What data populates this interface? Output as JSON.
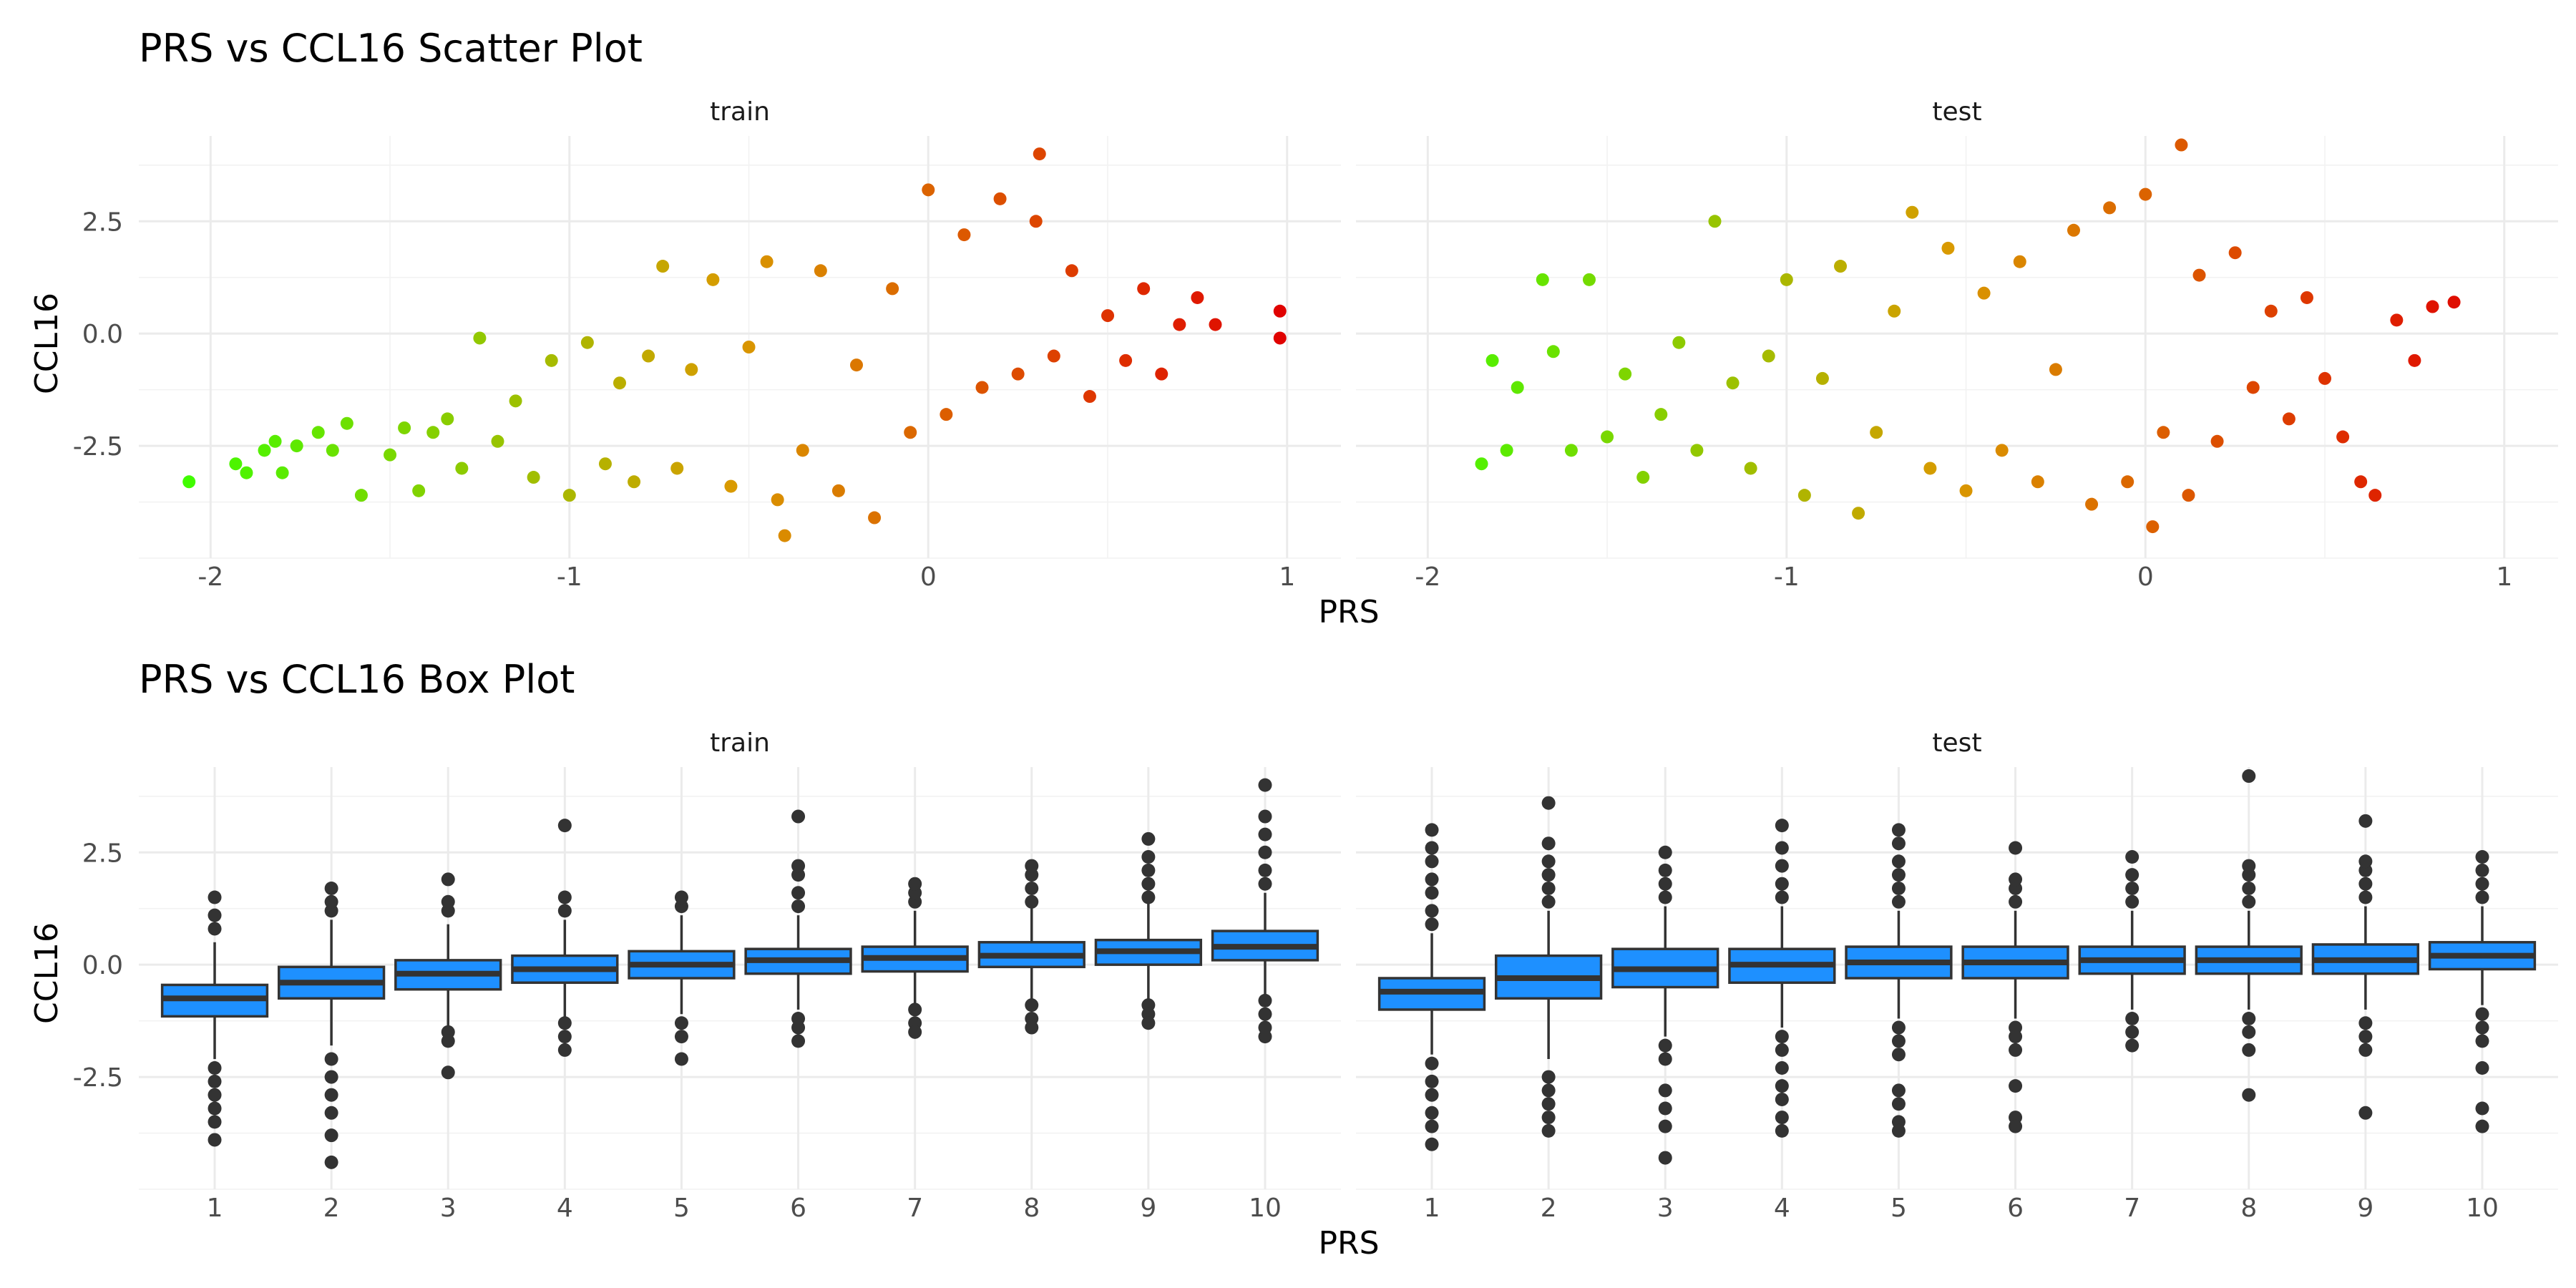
{
  "chart_data": [
    {
      "type": "scatter",
      "title": "PRS vs CCL16 Scatter Plot",
      "xlabel": "PRS",
      "ylabel": "CCL16",
      "xlim": [
        -2.2,
        1.15
      ],
      "ylim": [
        -5.0,
        4.4
      ],
      "x_ticks": [
        -2,
        -1,
        0,
        1
      ],
      "y_ticks": [
        -2.5,
        0.0,
        2.5
      ],
      "y_tick_labels": [
        "-2.5",
        "0.0",
        "2.5"
      ],
      "color_gradient": {
        "low": "#3cff00",
        "mid": "#d99a00",
        "high": "#e00000"
      },
      "grid": true,
      "legend": "none",
      "facets": [
        {
          "label": "train",
          "points": [
            [
              -2.06,
              -3.3
            ],
            [
              -1.93,
              -2.9
            ],
            [
              -1.9,
              -3.1
            ],
            [
              -1.85,
              -2.6
            ],
            [
              -1.82,
              -2.4
            ],
            [
              -1.8,
              -3.1
            ],
            [
              -1.76,
              -2.5
            ],
            [
              -1.7,
              -2.2
            ],
            [
              -1.66,
              -2.6
            ],
            [
              -1.62,
              -2.0
            ],
            [
              -1.58,
              -3.6
            ],
            [
              -1.5,
              -2.7
            ],
            [
              -1.46,
              -2.1
            ],
            [
              -1.42,
              -3.5
            ],
            [
              -1.38,
              -2.2
            ],
            [
              -1.34,
              -1.9
            ],
            [
              -1.3,
              -3.0
            ],
            [
              -1.25,
              -0.1
            ],
            [
              -1.2,
              -2.4
            ],
            [
              -1.15,
              -1.5
            ],
            [
              -1.1,
              -3.2
            ],
            [
              -1.05,
              -0.6
            ],
            [
              -1.0,
              -3.6
            ],
            [
              -0.95,
              -0.2
            ],
            [
              -0.9,
              -2.9
            ],
            [
              -0.86,
              -1.1
            ],
            [
              -0.82,
              -3.3
            ],
            [
              -0.78,
              -0.5
            ],
            [
              -0.74,
              1.5
            ],
            [
              -0.7,
              -3.0
            ],
            [
              -0.66,
              -0.8
            ],
            [
              -0.6,
              1.2
            ],
            [
              -0.55,
              -3.4
            ],
            [
              -0.5,
              -0.3
            ],
            [
              -0.45,
              1.6
            ],
            [
              -0.42,
              -3.7
            ],
            [
              -0.4,
              -4.5
            ],
            [
              -0.35,
              -2.6
            ],
            [
              -0.3,
              1.4
            ],
            [
              -0.25,
              -3.5
            ],
            [
              -0.2,
              -0.7
            ],
            [
              -0.15,
              -4.1
            ],
            [
              -0.1,
              1.0
            ],
            [
              -0.05,
              -2.2
            ],
            [
              0.0,
              3.2
            ],
            [
              0.05,
              -1.8
            ],
            [
              0.1,
              2.2
            ],
            [
              0.15,
              -1.2
            ],
            [
              0.2,
              3.0
            ],
            [
              0.25,
              -0.9
            ],
            [
              0.3,
              2.5
            ],
            [
              0.31,
              4.0
            ],
            [
              0.35,
              -0.5
            ],
            [
              0.4,
              1.4
            ],
            [
              0.45,
              -1.4
            ],
            [
              0.5,
              0.4
            ],
            [
              0.55,
              -0.6
            ],
            [
              0.6,
              1.0
            ],
            [
              0.65,
              -0.9
            ],
            [
              0.7,
              0.2
            ],
            [
              0.75,
              0.8
            ],
            [
              0.8,
              0.2
            ],
            [
              0.98,
              0.5
            ],
            [
              0.98,
              -0.1
            ]
          ]
        },
        {
          "label": "test",
          "points": [
            [
              -1.85,
              -2.9
            ],
            [
              -1.82,
              -0.6
            ],
            [
              -1.78,
              -2.6
            ],
            [
              -1.75,
              -1.2
            ],
            [
              -1.68,
              1.2
            ],
            [
              -1.65,
              -0.4
            ],
            [
              -1.6,
              -2.6
            ],
            [
              -1.55,
              1.2
            ],
            [
              -1.5,
              -2.3
            ],
            [
              -1.45,
              -0.9
            ],
            [
              -1.4,
              -3.2
            ],
            [
              -1.35,
              -1.8
            ],
            [
              -1.3,
              -0.2
            ],
            [
              -1.25,
              -2.6
            ],
            [
              -1.2,
              2.5
            ],
            [
              -1.15,
              -1.1
            ],
            [
              -1.1,
              -3.0
            ],
            [
              -1.05,
              -0.5
            ],
            [
              -1.0,
              1.2
            ],
            [
              -0.95,
              -3.6
            ],
            [
              -0.9,
              -1.0
            ],
            [
              -0.85,
              1.5
            ],
            [
              -0.8,
              -4.0
            ],
            [
              -0.75,
              -2.2
            ],
            [
              -0.7,
              0.5
            ],
            [
              -0.65,
              2.7
            ],
            [
              -0.6,
              -3.0
            ],
            [
              -0.55,
              1.9
            ],
            [
              -0.5,
              -3.5
            ],
            [
              -0.45,
              0.9
            ],
            [
              -0.4,
              -2.6
            ],
            [
              -0.35,
              1.6
            ],
            [
              -0.3,
              -3.3
            ],
            [
              -0.25,
              -0.8
            ],
            [
              -0.2,
              2.3
            ],
            [
              -0.15,
              -3.8
            ],
            [
              -0.1,
              2.8
            ],
            [
              -0.05,
              -3.3
            ],
            [
              0.0,
              3.1
            ],
            [
              0.02,
              -4.3
            ],
            [
              0.05,
              -2.2
            ],
            [
              0.1,
              4.2
            ],
            [
              0.12,
              -3.6
            ],
            [
              0.15,
              1.3
            ],
            [
              0.2,
              -2.4
            ],
            [
              0.25,
              1.8
            ],
            [
              0.3,
              -1.2
            ],
            [
              0.35,
              0.5
            ],
            [
              0.4,
              -1.9
            ],
            [
              0.45,
              0.8
            ],
            [
              0.5,
              -1.0
            ],
            [
              0.55,
              -2.3
            ],
            [
              0.6,
              -3.3
            ],
            [
              0.64,
              -3.6
            ],
            [
              0.7,
              0.3
            ],
            [
              0.75,
              -0.6
            ],
            [
              0.8,
              0.6
            ],
            [
              0.86,
              0.7
            ]
          ]
        }
      ]
    },
    {
      "type": "box",
      "title": "PRS vs CCL16 Box Plot",
      "xlabel": "PRS",
      "ylabel": "CCL16",
      "categories": [
        "1",
        "2",
        "3",
        "4",
        "5",
        "6",
        "7",
        "8",
        "9",
        "10"
      ],
      "ylim": [
        -5.0,
        4.4
      ],
      "y_ticks": [
        -2.5,
        0.0,
        2.5
      ],
      "y_tick_labels": [
        "-2.5",
        "0.0",
        "2.5"
      ],
      "box_fill": "#1e90ff",
      "box_stroke": "#333333",
      "grid": true,
      "legend": "none",
      "facets": [
        {
          "label": "train",
          "boxes": [
            {
              "q1": -1.15,
              "median": -0.75,
              "q3": -0.45,
              "low": -2.1,
              "high": 0.5,
              "outliers": [
                -2.3,
                -2.6,
                -2.9,
                -3.2,
                -3.5,
                -3.9,
                0.8,
                1.1,
                1.5
              ]
            },
            {
              "q1": -0.75,
              "median": -0.4,
              "q3": -0.05,
              "low": -1.8,
              "high": 1.0,
              "outliers": [
                -2.1,
                -2.5,
                -2.9,
                -3.3,
                -3.8,
                -4.4,
                1.2,
                1.4,
                1.7
              ]
            },
            {
              "q1": -0.55,
              "median": -0.2,
              "q3": 0.1,
              "low": -1.4,
              "high": 0.9,
              "outliers": [
                -1.5,
                -1.7,
                -2.4,
                1.2,
                1.4,
                1.9
              ]
            },
            {
              "q1": -0.4,
              "median": -0.1,
              "q3": 0.2,
              "low": -1.2,
              "high": 1.0,
              "outliers": [
                -1.3,
                -1.6,
                -1.9,
                1.2,
                1.5,
                3.1
              ]
            },
            {
              "q1": -0.3,
              "median": 0.0,
              "q3": 0.3,
              "low": -1.1,
              "high": 1.1,
              "outliers": [
                -1.3,
                -1.6,
                -2.1,
                1.3,
                1.5
              ]
            },
            {
              "q1": -0.2,
              "median": 0.1,
              "q3": 0.35,
              "low": -1.0,
              "high": 1.1,
              "outliers": [
                -1.2,
                -1.4,
                -1.7,
                1.3,
                1.6,
                2.0,
                2.2,
                3.3
              ]
            },
            {
              "q1": -0.15,
              "median": 0.15,
              "q3": 0.4,
              "low": -0.9,
              "high": 1.2,
              "outliers": [
                -1.0,
                -1.3,
                -1.5,
                1.4,
                1.6,
                1.8
              ]
            },
            {
              "q1": -0.05,
              "median": 0.2,
              "q3": 0.5,
              "low": -0.8,
              "high": 1.3,
              "outliers": [
                -0.9,
                -1.2,
                -1.4,
                1.4,
                1.7,
                2.0,
                2.2
              ]
            },
            {
              "q1": 0.0,
              "median": 0.3,
              "q3": 0.55,
              "low": -0.8,
              "high": 1.4,
              "outliers": [
                -0.9,
                -1.1,
                -1.3,
                1.5,
                1.8,
                2.1,
                2.4,
                2.8
              ]
            },
            {
              "q1": 0.1,
              "median": 0.4,
              "q3": 0.75,
              "low": -0.7,
              "high": 1.6,
              "outliers": [
                -0.8,
                -1.1,
                -1.4,
                -1.6,
                1.8,
                2.1,
                2.5,
                2.9,
                3.3,
                4.0
              ]
            }
          ]
        },
        {
          "label": "test",
          "boxes": [
            {
              "q1": -1.0,
              "median": -0.6,
              "q3": -0.3,
              "low": -2.0,
              "high": 0.7,
              "outliers": [
                -2.2,
                -2.6,
                -2.9,
                -3.3,
                -3.6,
                -4.0,
                0.9,
                1.2,
                1.6,
                1.9,
                2.3,
                2.6,
                3.0
              ]
            },
            {
              "q1": -0.75,
              "median": -0.3,
              "q3": 0.2,
              "low": -2.1,
              "high": 1.2,
              "outliers": [
                -2.5,
                -2.8,
                -3.1,
                -3.4,
                -3.7,
                1.4,
                1.7,
                2.0,
                2.3,
                2.7,
                3.6
              ]
            },
            {
              "q1": -0.5,
              "median": -0.1,
              "q3": 0.35,
              "low": -1.6,
              "high": 1.3,
              "outliers": [
                -1.8,
                -2.1,
                -2.8,
                -3.2,
                -3.6,
                -4.3,
                1.5,
                1.8,
                2.1,
                2.5
              ]
            },
            {
              "q1": -0.4,
              "median": 0.0,
              "q3": 0.35,
              "low": -1.4,
              "high": 1.3,
              "outliers": [
                -1.6,
                -1.9,
                -2.3,
                -2.7,
                -3.0,
                -3.4,
                -3.7,
                1.5,
                1.8,
                2.2,
                2.6,
                3.1
              ]
            },
            {
              "q1": -0.3,
              "median": 0.05,
              "q3": 0.4,
              "low": -1.2,
              "high": 1.2,
              "outliers": [
                -1.4,
                -1.7,
                -2.0,
                -2.8,
                -3.1,
                -3.5,
                -3.7,
                1.4,
                1.7,
                2.0,
                2.3,
                2.7,
                3.0
              ]
            },
            {
              "q1": -0.3,
              "median": 0.05,
              "q3": 0.4,
              "low": -1.2,
              "high": 1.2,
              "outliers": [
                -1.4,
                -1.6,
                -1.9,
                -2.7,
                -3.4,
                -3.6,
                1.4,
                1.7,
                1.9,
                2.6
              ]
            },
            {
              "q1": -0.2,
              "median": 0.1,
              "q3": 0.4,
              "low": -1.0,
              "high": 1.2,
              "outliers": [
                -1.2,
                -1.5,
                -1.8,
                1.4,
                1.7,
                2.0,
                2.4
              ]
            },
            {
              "q1": -0.2,
              "median": 0.1,
              "q3": 0.4,
              "low": -1.0,
              "high": 1.2,
              "outliers": [
                -1.2,
                -1.5,
                -1.9,
                -2.9,
                1.4,
                1.7,
                2.0,
                2.2,
                4.2
              ]
            },
            {
              "q1": -0.2,
              "median": 0.1,
              "q3": 0.45,
              "low": -1.0,
              "high": 1.3,
              "outliers": [
                -1.3,
                -1.6,
                -1.9,
                -3.3,
                1.5,
                1.8,
                2.1,
                2.3,
                3.2
              ]
            },
            {
              "q1": -0.1,
              "median": 0.2,
              "q3": 0.5,
              "low": -0.9,
              "high": 1.3,
              "outliers": [
                -1.1,
                -1.4,
                -1.7,
                -2.3,
                -3.2,
                -3.6,
                1.5,
                1.8,
                2.1,
                2.4
              ]
            }
          ]
        }
      ]
    }
  ]
}
